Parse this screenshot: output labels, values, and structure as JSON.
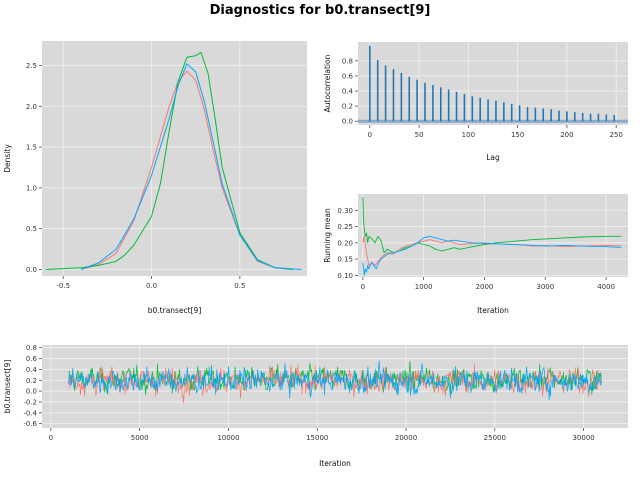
{
  "title": "Diagnostics for b0.transect[9]",
  "colors": {
    "panel_bg": "#D9D9D9",
    "grid": "#F2F2F2",
    "chains": [
      "#F8766D",
      "#00BA38",
      "#00A5FF"
    ],
    "acf_bar": "#1F77B4",
    "acf_baseline": "#8AA9C9"
  },
  "chart_data": [
    {
      "id": "density",
      "type": "line",
      "xlabel": "b0.transect[9]",
      "ylabel": "Density",
      "xlim": [
        -0.62,
        0.88
      ],
      "ylim": [
        -0.08,
        2.8
      ],
      "xticks": [
        -0.5,
        0.0,
        0.5
      ],
      "xtick_labels": [
        "-0.5",
        "0.0",
        "0.5"
      ],
      "yticks": [
        0.0,
        0.5,
        1.0,
        1.5,
        2.0,
        2.5
      ],
      "ytick_labels": [
        "0.0",
        "0.5",
        "1.0",
        "1.5",
        "2.0",
        "2.5"
      ],
      "series": [
        {
          "x": [
            -0.4,
            -0.3,
            -0.2,
            -0.1,
            0.0,
            0.1,
            0.15,
            0.2,
            0.25,
            0.3,
            0.35,
            0.4,
            0.5,
            0.6,
            0.7,
            0.8
          ],
          "y": [
            0.0,
            0.06,
            0.2,
            0.6,
            1.25,
            2.0,
            2.3,
            2.43,
            2.32,
            1.95,
            1.45,
            1.0,
            0.42,
            0.1,
            0.02,
            0.0
          ]
        },
        {
          "x": [
            -0.6,
            -0.4,
            -0.3,
            -0.2,
            -0.15,
            -0.1,
            0.0,
            0.05,
            0.1,
            0.15,
            0.2,
            0.25,
            0.28,
            0.32,
            0.36,
            0.4,
            0.5,
            0.6,
            0.7,
            0.8
          ],
          "y": [
            0.0,
            0.02,
            0.05,
            0.1,
            0.18,
            0.3,
            0.65,
            1.05,
            1.7,
            2.3,
            2.6,
            2.62,
            2.66,
            2.4,
            1.85,
            1.25,
            0.45,
            0.12,
            0.02,
            0.0
          ]
        },
        {
          "x": [
            -0.4,
            -0.3,
            -0.2,
            -0.1,
            0.0,
            0.1,
            0.15,
            0.2,
            0.25,
            0.3,
            0.35,
            0.4,
            0.5,
            0.6,
            0.7,
            0.85
          ],
          "y": [
            0.0,
            0.08,
            0.25,
            0.62,
            1.15,
            1.85,
            2.25,
            2.52,
            2.42,
            2.05,
            1.55,
            1.05,
            0.42,
            0.11,
            0.02,
            0.0
          ]
        }
      ]
    },
    {
      "id": "autocorrelation",
      "type": "bar",
      "xlabel": "Lag",
      "ylabel": "Autocorrelation",
      "xlim": [
        -12,
        262
      ],
      "ylim": [
        -0.05,
        1.05
      ],
      "xticks": [
        0,
        50,
        100,
        150,
        200,
        250
      ],
      "xtick_labels": [
        "0",
        "50",
        "100",
        "150",
        "200",
        "250"
      ],
      "yticks": [
        0.0,
        0.2,
        0.4,
        0.6,
        0.8
      ],
      "ytick_labels": [
        "0.0",
        "0.2",
        "0.4",
        "0.6",
        "0.8"
      ],
      "lags": [
        0,
        8,
        16,
        24,
        32,
        40,
        48,
        56,
        64,
        72,
        80,
        88,
        96,
        104,
        112,
        120,
        128,
        136,
        144,
        152,
        160,
        168,
        176,
        184,
        192,
        200,
        208,
        216,
        224,
        232,
        240,
        248
      ],
      "values": [
        1.0,
        0.81,
        0.74,
        0.69,
        0.64,
        0.59,
        0.55,
        0.51,
        0.48,
        0.45,
        0.42,
        0.39,
        0.36,
        0.33,
        0.31,
        0.29,
        0.27,
        0.25,
        0.23,
        0.21,
        0.19,
        0.18,
        0.17,
        0.16,
        0.14,
        0.13,
        0.12,
        0.11,
        0.1,
        0.1,
        0.09,
        0.08
      ]
    },
    {
      "id": "running-mean",
      "type": "line",
      "xlabel": "Iteration",
      "ylabel": "Running mean",
      "xlim": [
        -80,
        4360
      ],
      "ylim": [
        0.095,
        0.35
      ],
      "xticks": [
        0,
        1000,
        2000,
        3000,
        4000
      ],
      "xtick_labels": [
        "0",
        "1000",
        "2000",
        "3000",
        "4000"
      ],
      "yticks": [
        0.1,
        0.15,
        0.2,
        0.25,
        0.3
      ],
      "ytick_labels": [
        "0.10",
        "0.15",
        "0.20",
        "0.25",
        "0.30"
      ],
      "series": [
        {
          "x": [
            0,
            20,
            50,
            100,
            150,
            200,
            300,
            400,
            500,
            600,
            700,
            800,
            900,
            1000,
            1100,
            1200,
            1300,
            1400,
            1500,
            1600,
            1800,
            2000,
            2200,
            2500,
            2800,
            3000,
            3300,
            3600,
            4000,
            4250
          ],
          "y": [
            0.2,
            0.22,
            0.18,
            0.13,
            0.14,
            0.13,
            0.155,
            0.17,
            0.165,
            0.18,
            0.19,
            0.195,
            0.2,
            0.205,
            0.21,
            0.205,
            0.2,
            0.205,
            0.2,
            0.195,
            0.198,
            0.2,
            0.197,
            0.195,
            0.19,
            0.192,
            0.188,
            0.19,
            0.192,
            0.191
          ]
        },
        {
          "x": [
            0,
            10,
            25,
            40,
            60,
            80,
            100,
            130,
            160,
            200,
            250,
            300,
            350,
            400,
            450,
            500,
            600,
            700,
            800,
            900,
            1000,
            1100,
            1200,
            1300,
            1400,
            1500,
            1600,
            1800,
            2000,
            2200,
            2500,
            2800,
            3000,
            3300,
            3600,
            4000,
            4250
          ],
          "y": [
            0.34,
            0.27,
            0.24,
            0.22,
            0.23,
            0.2,
            0.22,
            0.215,
            0.21,
            0.2,
            0.22,
            0.205,
            0.17,
            0.18,
            0.175,
            0.17,
            0.175,
            0.185,
            0.19,
            0.2,
            0.195,
            0.19,
            0.18,
            0.175,
            0.18,
            0.185,
            0.18,
            0.188,
            0.195,
            0.2,
            0.205,
            0.21,
            0.212,
            0.215,
            0.218,
            0.22,
            0.22
          ]
        },
        {
          "x": [
            0,
            20,
            40,
            60,
            80,
            100,
            140,
            180,
            220,
            260,
            300,
            400,
            500,
            600,
            700,
            800,
            900,
            1000,
            1100,
            1200,
            1300,
            1400,
            1500,
            1600,
            1800,
            2000,
            2300,
            2600,
            3000,
            3300,
            3600,
            4000,
            4250
          ],
          "y": [
            0.14,
            0.1,
            0.12,
            0.11,
            0.13,
            0.12,
            0.14,
            0.13,
            0.12,
            0.14,
            0.15,
            0.165,
            0.17,
            0.175,
            0.18,
            0.19,
            0.2,
            0.215,
            0.22,
            0.215,
            0.21,
            0.205,
            0.208,
            0.205,
            0.2,
            0.198,
            0.196,
            0.194,
            0.19,
            0.192,
            0.19,
            0.188,
            0.186
          ]
        }
      ]
    },
    {
      "id": "trace",
      "type": "line",
      "xlabel": "Iteration",
      "ylabel": "b0.transect[9]",
      "xlim": [
        -500,
        32500
      ],
      "ylim": [
        -0.68,
        0.85
      ],
      "xticks": [
        0,
        5000,
        10000,
        15000,
        20000,
        25000,
        30000
      ],
      "xtick_labels": [
        "0",
        "5000",
        "10000",
        "15000",
        "20000",
        "25000",
        "30000"
      ],
      "yticks": [
        -0.6,
        -0.4,
        -0.2,
        0.0,
        0.2,
        0.4,
        0.6,
        0.8
      ],
      "ytick_labels": [
        "-0.6",
        "-0.4",
        "-0.2",
        "0.0",
        "0.2",
        "0.4",
        "0.6",
        "0.8"
      ],
      "iterations": {
        "start": 1000,
        "end": 31000
      },
      "series": [
        {
          "mean": 0.19,
          "sd": 0.16,
          "min": -0.4,
          "max": 0.76
        },
        {
          "mean": 0.22,
          "sd": 0.15,
          "min": -0.6,
          "max": 0.7
        },
        {
          "mean": 0.19,
          "sd": 0.16,
          "min": -0.42,
          "max": 0.77
        }
      ]
    }
  ]
}
